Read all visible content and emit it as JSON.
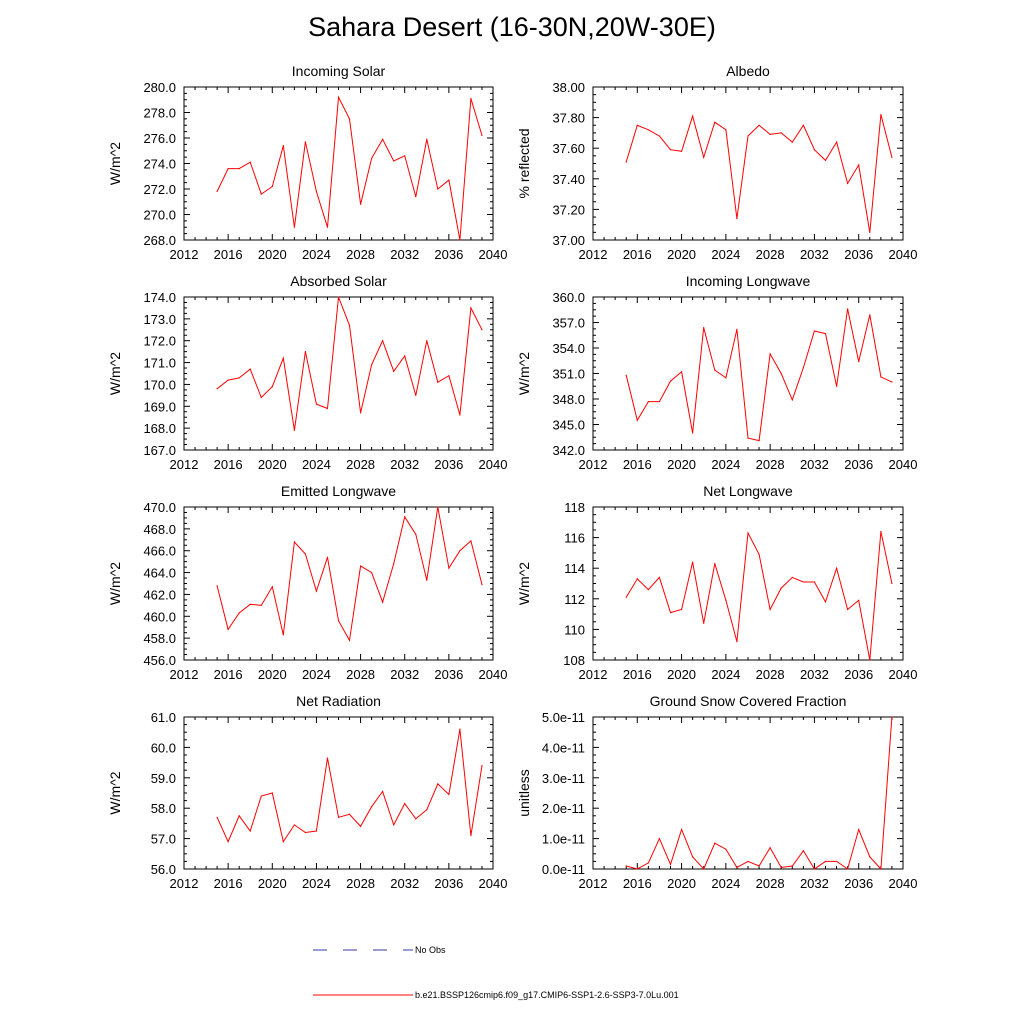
{
  "title": "Sahara Desert (16-30N,20W-30E)",
  "legend": {
    "items": [
      {
        "label": "No Obs",
        "color": "#3a3aa8",
        "style": "dashed"
      },
      {
        "label": "b.e21.BSSP126cmip6.f09_g17.CMIP6-SSP1-2.6-SSP3-7.0Lu.001",
        "color": "#ff0000",
        "style": "solid"
      }
    ]
  },
  "chart_data": [
    {
      "type": "line",
      "title": "Incoming Solar",
      "ylabel": "W/m^2",
      "xlim": [
        2012,
        2040
      ],
      "xticks": [
        "2012",
        "2016",
        "2020",
        "2024",
        "2028",
        "2032",
        "2036",
        "2040"
      ],
      "ylim": [
        268.0,
        280.0
      ],
      "yticks": [
        "268.0",
        "270.0",
        "272.0",
        "274.0",
        "276.0",
        "278.0",
        "280.0"
      ],
      "series": [
        {
          "color": "#ff0000",
          "x": [
            2015,
            2016,
            2017,
            2018,
            2019,
            2020,
            2021,
            2022,
            2023,
            2024,
            2025,
            2026,
            2027,
            2028,
            2029,
            2030,
            2031,
            2032,
            2033,
            2034,
            2035,
            2036,
            2037,
            2038,
            2039
          ],
          "y": [
            271.8,
            273.6,
            273.6,
            274.1,
            271.6,
            272.2,
            275.4,
            269.0,
            275.7,
            271.8,
            269.0,
            279.2,
            277.5,
            270.8,
            274.4,
            275.9,
            274.2,
            274.6,
            271.4,
            275.9,
            272.0,
            272.7,
            268.0,
            279.1,
            276.2
          ]
        }
      ]
    },
    {
      "type": "line",
      "title": "Albedo",
      "ylabel": "% reflected",
      "xlim": [
        2012,
        2040
      ],
      "xticks": [
        "2012",
        "2016",
        "2020",
        "2024",
        "2028",
        "2032",
        "2036",
        "2040"
      ],
      "ylim": [
        37.0,
        38.0
      ],
      "yticks": [
        "37.00",
        "37.20",
        "37.40",
        "37.60",
        "37.80",
        "38.00"
      ],
      "series": [
        {
          "color": "#ff0000",
          "x": [
            2015,
            2016,
            2017,
            2018,
            2019,
            2020,
            2021,
            2022,
            2023,
            2024,
            2025,
            2026,
            2027,
            2028,
            2029,
            2030,
            2031,
            2032,
            2033,
            2034,
            2035,
            2036,
            2037,
            2038,
            2039
          ],
          "y": [
            37.51,
            37.75,
            37.72,
            37.68,
            37.59,
            37.58,
            37.81,
            37.54,
            37.77,
            37.72,
            37.14,
            37.68,
            37.75,
            37.69,
            37.7,
            37.64,
            37.75,
            37.59,
            37.52,
            37.64,
            37.37,
            37.49,
            37.05,
            37.82,
            37.54
          ]
        }
      ]
    },
    {
      "type": "line",
      "title": "Absorbed Solar",
      "ylabel": "W/m^2",
      "xlim": [
        2012,
        2040
      ],
      "xticks": [
        "2012",
        "2016",
        "2020",
        "2024",
        "2028",
        "2032",
        "2036",
        "2040"
      ],
      "ylim": [
        167.0,
        174.0
      ],
      "yticks": [
        "167.0",
        "168.0",
        "169.0",
        "170.0",
        "171.0",
        "172.0",
        "173.0",
        "174.0"
      ],
      "series": [
        {
          "color": "#ff0000",
          "x": [
            2015,
            2016,
            2017,
            2018,
            2019,
            2020,
            2021,
            2022,
            2023,
            2024,
            2025,
            2026,
            2027,
            2028,
            2029,
            2030,
            2031,
            2032,
            2033,
            2034,
            2035,
            2036,
            2037,
            2038,
            2039
          ],
          "y": [
            169.8,
            170.2,
            170.3,
            170.7,
            169.4,
            169.9,
            171.2,
            167.9,
            171.5,
            169.1,
            168.9,
            174.0,
            172.7,
            168.7,
            170.9,
            172.0,
            170.6,
            171.3,
            169.5,
            172.0,
            170.1,
            170.4,
            168.6,
            173.5,
            172.5
          ]
        }
      ]
    },
    {
      "type": "line",
      "title": "Incoming Longwave",
      "ylabel": "W/m^2",
      "xlim": [
        2012,
        2040
      ],
      "xticks": [
        "2012",
        "2016",
        "2020",
        "2024",
        "2028",
        "2032",
        "2036",
        "2040"
      ],
      "ylim": [
        342.0,
        360.0
      ],
      "yticks": [
        "342.0",
        "345.0",
        "348.0",
        "351.0",
        "354.0",
        "357.0",
        "360.0"
      ],
      "series": [
        {
          "color": "#ff0000",
          "x": [
            2015,
            2016,
            2017,
            2018,
            2019,
            2020,
            2021,
            2022,
            2023,
            2024,
            2025,
            2026,
            2027,
            2028,
            2029,
            2030,
            2031,
            2032,
            2033,
            2034,
            2035,
            2036,
            2037,
            2038,
            2039
          ],
          "y": [
            350.8,
            345.5,
            347.7,
            347.7,
            350.1,
            351.2,
            344.0,
            356.4,
            351.4,
            350.5,
            356.2,
            343.4,
            343.1,
            353.3,
            351.0,
            347.9,
            351.7,
            356.0,
            355.7,
            349.5,
            358.6,
            352.4,
            357.9,
            350.6,
            350.0
          ]
        }
      ]
    },
    {
      "type": "line",
      "title": "Emitted Longwave",
      "ylabel": "W/m^2",
      "xlim": [
        2012,
        2040
      ],
      "xticks": [
        "2012",
        "2016",
        "2020",
        "2024",
        "2028",
        "2032",
        "2036",
        "2040"
      ],
      "ylim": [
        456.0,
        470.0
      ],
      "yticks": [
        "456.0",
        "458.0",
        "460.0",
        "462.0",
        "464.0",
        "466.0",
        "468.0",
        "470.0"
      ],
      "series": [
        {
          "color": "#ff0000",
          "x": [
            2015,
            2016,
            2017,
            2018,
            2019,
            2020,
            2021,
            2022,
            2023,
            2024,
            2025,
            2026,
            2027,
            2028,
            2029,
            2030,
            2031,
            2032,
            2033,
            2034,
            2035,
            2036,
            2037,
            2038,
            2039
          ],
          "y": [
            462.8,
            458.8,
            460.3,
            461.1,
            461.0,
            462.7,
            458.3,
            466.8,
            465.7,
            462.3,
            465.4,
            459.6,
            457.8,
            464.6,
            464.0,
            461.3,
            464.8,
            469.1,
            467.5,
            463.3,
            470.0,
            464.4,
            466.0,
            466.9,
            462.9
          ]
        }
      ]
    },
    {
      "type": "line",
      "title": "Net Longwave",
      "ylabel": "W/m^2",
      "xlim": [
        2012,
        2040
      ],
      "xticks": [
        "2012",
        "2016",
        "2020",
        "2024",
        "2028",
        "2032",
        "2036",
        "2040"
      ],
      "ylim": [
        108,
        118
      ],
      "yticks": [
        "108",
        "110",
        "112",
        "114",
        "116",
        "118"
      ],
      "series": [
        {
          "color": "#ff0000",
          "x": [
            2015,
            2016,
            2017,
            2018,
            2019,
            2020,
            2021,
            2022,
            2023,
            2024,
            2025,
            2026,
            2027,
            2028,
            2029,
            2030,
            2031,
            2032,
            2033,
            2034,
            2035,
            2036,
            2037,
            2038,
            2039
          ],
          "y": [
            112.1,
            113.3,
            112.6,
            113.4,
            111.1,
            111.3,
            114.4,
            110.4,
            114.3,
            111.9,
            109.2,
            116.3,
            114.9,
            111.3,
            112.7,
            113.4,
            113.1,
            113.1,
            111.8,
            114.0,
            111.3,
            111.9,
            108.0,
            116.4,
            113.0
          ]
        }
      ]
    },
    {
      "type": "line",
      "title": "Net Radiation",
      "ylabel": "W/m^2",
      "xlim": [
        2012,
        2040
      ],
      "xticks": [
        "2012",
        "2016",
        "2020",
        "2024",
        "2028",
        "2032",
        "2036",
        "2040"
      ],
      "ylim": [
        56.0,
        61.0
      ],
      "yticks": [
        "56.0",
        "57.0",
        "58.0",
        "59.0",
        "60.0",
        "61.0"
      ],
      "series": [
        {
          "color": "#ff0000",
          "x": [
            2015,
            2016,
            2017,
            2018,
            2019,
            2020,
            2021,
            2022,
            2023,
            2024,
            2025,
            2026,
            2027,
            2028,
            2029,
            2030,
            2031,
            2032,
            2033,
            2034,
            2035,
            2036,
            2037,
            2038,
            2039
          ],
          "y": [
            57.7,
            56.9,
            57.75,
            57.25,
            58.4,
            58.5,
            56.9,
            57.45,
            57.2,
            57.25,
            59.65,
            57.7,
            57.8,
            57.4,
            58.05,
            58.55,
            57.45,
            58.15,
            57.65,
            57.95,
            58.8,
            58.45,
            60.6,
            57.1,
            59.4
          ]
        }
      ]
    },
    {
      "type": "line",
      "title": "Ground Snow Covered Fraction",
      "ylabel": "unitless",
      "xlim": [
        2012,
        2040
      ],
      "xticks": [
        "2012",
        "2016",
        "2020",
        "2024",
        "2028",
        "2032",
        "2036",
        "2040"
      ],
      "ylim": [
        0,
        5e-11
      ],
      "yticks": [
        "0.0e-11",
        "1.0e-11",
        "2.0e-11",
        "3.0e-11",
        "4.0e-11",
        "5.0e-11"
      ],
      "series": [
        {
          "color": "#ff0000",
          "x": [
            2015,
            2016,
            2017,
            2018,
            2019,
            2020,
            2021,
            2022,
            2023,
            2024,
            2025,
            2026,
            2027,
            2028,
            2029,
            2030,
            2031,
            2032,
            2033,
            2034,
            2035,
            2036,
            2037,
            2038,
            2039
          ],
          "y": [
            1e-12,
            0.0,
            2e-12,
            1e-11,
            1.5e-12,
            1.3e-11,
            4e-12,
            0.0,
            8.5e-12,
            6.5e-12,
            5e-13,
            2.5e-12,
            1e-12,
            7e-12,
            5e-13,
            1e-12,
            6e-12,
            0.0,
            2.5e-12,
            2.5e-12,
            0.0,
            1.3e-11,
            4e-12,
            0.0,
            5e-11
          ]
        }
      ]
    }
  ]
}
